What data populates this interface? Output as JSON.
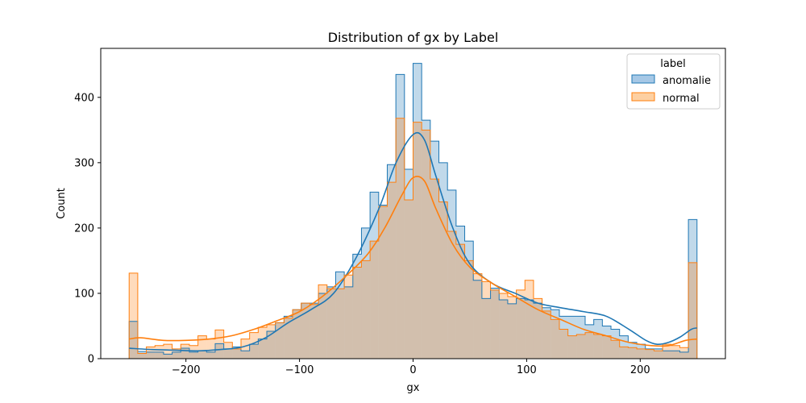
{
  "chart_data": {
    "type": "histogram",
    "title": "Distribution of gx by Label",
    "xlabel": "gx",
    "ylabel": "Count",
    "xlim": [
      -275,
      275
    ],
    "ylim": [
      0,
      475
    ],
    "xticks": [
      -200,
      -100,
      0,
      100,
      200
    ],
    "yticks": [
      0,
      100,
      200,
      300,
      400
    ],
    "bin_edges": [
      -250,
      -242.424,
      -234.848,
      -227.273,
      -219.697,
      -212.121,
      -204.545,
      -196.97,
      -189.394,
      -181.818,
      -174.242,
      -166.667,
      -159.091,
      -151.515,
      -143.939,
      -136.364,
      -128.788,
      -121.212,
      -113.636,
      -106.061,
      -98.485,
      -90.909,
      -83.333,
      -75.758,
      -68.182,
      -60.606,
      -53.03,
      -45.455,
      -37.879,
      -30.303,
      -22.727,
      -15.152,
      -7.576,
      0,
      7.576,
      15.152,
      22.727,
      30.303,
      37.879,
      45.455,
      53.03,
      60.606,
      68.182,
      75.758,
      83.333,
      90.909,
      98.485,
      106.061,
      113.636,
      121.212,
      128.788,
      136.364,
      143.939,
      151.515,
      159.091,
      166.667,
      174.242,
      181.818,
      189.394,
      196.97,
      204.545,
      212.121,
      219.697,
      227.273,
      234.848,
      242.424,
      250
    ],
    "legend": {
      "title": "label",
      "position": "upper right"
    },
    "series": [
      {
        "name": "anomalie",
        "color": "#1f77b4",
        "fill": "#a6c8e6",
        "counts": [
          57,
          11,
          10,
          10,
          7,
          10,
          16,
          10,
          12,
          10,
          23,
          15,
          18,
          12,
          22,
          30,
          42,
          55,
          65,
          75,
          85,
          85,
          100,
          110,
          133,
          110,
          160,
          200,
          255,
          235,
          297,
          435,
          290,
          452,
          365,
          333,
          300,
          258,
          203,
          180,
          120,
          92,
          108,
          90,
          84,
          92,
          90,
          85,
          78,
          75,
          65,
          65,
          65,
          52,
          60,
          50,
          45,
          35,
          25,
          22,
          15,
          15,
          12,
          12,
          10,
          213
        ],
        "kde": [
          [
            -250,
            16
          ],
          [
            -230,
            14
          ],
          [
            -210,
            13
          ],
          [
            -190,
            12
          ],
          [
            -170,
            14
          ],
          [
            -150,
            18
          ],
          [
            -130,
            32
          ],
          [
            -110,
            55
          ],
          [
            -90,
            75
          ],
          [
            -70,
            100
          ],
          [
            -50,
            155
          ],
          [
            -30,
            230
          ],
          [
            -15,
            300
          ],
          [
            0,
            343
          ],
          [
            10,
            335
          ],
          [
            20,
            280
          ],
          [
            35,
            200
          ],
          [
            50,
            145
          ],
          [
            70,
            115
          ],
          [
            90,
            100
          ],
          [
            110,
            85
          ],
          [
            130,
            78
          ],
          [
            150,
            72
          ],
          [
            170,
            65
          ],
          [
            190,
            45
          ],
          [
            205,
            28
          ],
          [
            215,
            22
          ],
          [
            225,
            25
          ],
          [
            235,
            33
          ],
          [
            245,
            45
          ],
          [
            250,
            47
          ]
        ]
      },
      {
        "name": "normal",
        "color": "#ff7f0e",
        "fill": "#fdd0a2",
        "counts": [
          131,
          8,
          18,
          20,
          22,
          15,
          22,
          20,
          35,
          30,
          44,
          25,
          15,
          30,
          40,
          48,
          52,
          55,
          62,
          75,
          85,
          83,
          113,
          107,
          107,
          128,
          140,
          150,
          180,
          233,
          270,
          368,
          243,
          362,
          350,
          275,
          240,
          195,
          175,
          150,
          130,
          118,
          105,
          100,
          95,
          105,
          120,
          92,
          73,
          60,
          45,
          35,
          37,
          40,
          37,
          35,
          28,
          18,
          17,
          15,
          14,
          12,
          22,
          20,
          17,
          147
        ],
        "kde": [
          [
            -250,
            30
          ],
          [
            -240,
            32
          ],
          [
            -220,
            28
          ],
          [
            -200,
            28
          ],
          [
            -180,
            30
          ],
          [
            -160,
            35
          ],
          [
            -140,
            45
          ],
          [
            -120,
            58
          ],
          [
            -100,
            72
          ],
          [
            -80,
            95
          ],
          [
            -60,
            125
          ],
          [
            -40,
            160
          ],
          [
            -25,
            200
          ],
          [
            -10,
            250
          ],
          [
            0,
            277
          ],
          [
            10,
            272
          ],
          [
            20,
            230
          ],
          [
            35,
            175
          ],
          [
            50,
            140
          ],
          [
            70,
            115
          ],
          [
            90,
            95
          ],
          [
            110,
            75
          ],
          [
            130,
            60
          ],
          [
            150,
            45
          ],
          [
            170,
            35
          ],
          [
            190,
            25
          ],
          [
            210,
            20
          ],
          [
            225,
            20
          ],
          [
            240,
            28
          ],
          [
            250,
            30
          ]
        ]
      }
    ]
  }
}
